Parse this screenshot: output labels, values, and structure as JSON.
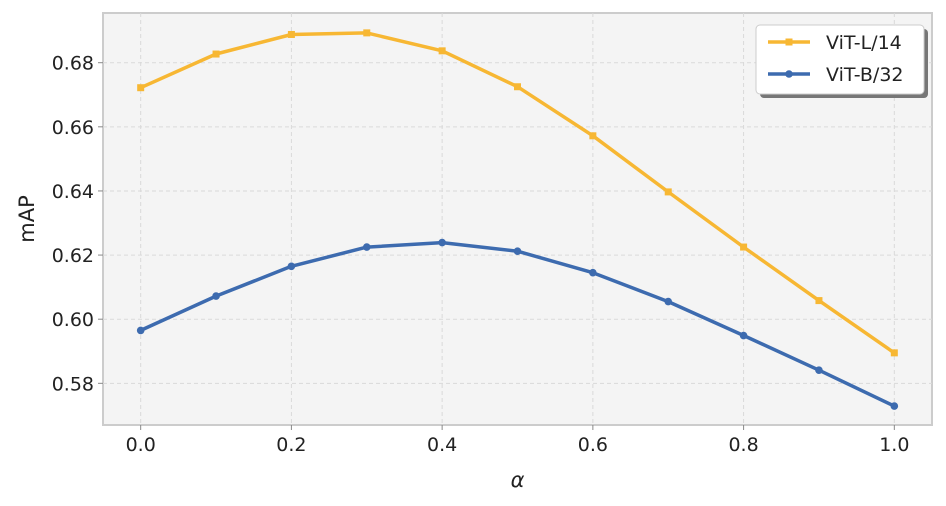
{
  "chart_data": {
    "type": "line",
    "title": "",
    "xlabel": "α",
    "ylabel": "mAP",
    "x": [
      0.0,
      0.1,
      0.2,
      0.3,
      0.4,
      0.5,
      0.6,
      0.7,
      0.8,
      0.9,
      1.0
    ],
    "xlim": [
      -0.05,
      1.05
    ],
    "ylim": [
      0.567,
      0.6955
    ],
    "xticks": [
      0.0,
      0.2,
      0.4,
      0.6,
      0.8,
      1.0
    ],
    "xtick_labels": [
      "0.0",
      "0.2",
      "0.4",
      "0.6",
      "0.8",
      "1.0"
    ],
    "yticks": [
      0.58,
      0.6,
      0.62,
      0.64,
      0.66,
      0.68
    ],
    "ytick_labels": [
      "0.58",
      "0.60",
      "0.62",
      "0.64",
      "0.66",
      "0.68"
    ],
    "grid": true,
    "legend_position": "top-right",
    "series": [
      {
        "name": "ViT-L/14",
        "color": "#F7B733",
        "marker": "square",
        "values": [
          0.6722,
          0.6827,
          0.6888,
          0.6893,
          0.6837,
          0.6725,
          0.6572,
          0.6397,
          0.6225,
          0.6058,
          0.5895
        ]
      },
      {
        "name": "ViT-B/32",
        "color": "#3D6BAF",
        "marker": "circle",
        "values": [
          0.5965,
          0.6072,
          0.6165,
          0.6225,
          0.6239,
          0.6212,
          0.6145,
          0.6055,
          0.5949,
          0.5841,
          0.5729
        ]
      }
    ]
  }
}
